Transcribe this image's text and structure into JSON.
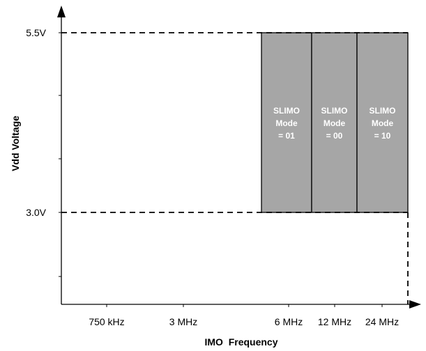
{
  "chart_data": {
    "type": "area",
    "xlabel": "IMO  Frequency",
    "ylabel": "Vdd Voltage",
    "x_ticks": [
      "750 kHz",
      "3 MHz",
      "6 MHz",
      "12 MHz",
      "24 MHz"
    ],
    "y_ticks": [
      "3.0V",
      "5.5V"
    ],
    "y_range": [
      3.0,
      5.5
    ],
    "regions": [
      {
        "label_lines": [
          "SLIMO",
          "Mode",
          "= 01"
        ],
        "x_to": "6 MHz"
      },
      {
        "label_lines": [
          "SLIMO",
          "Mode",
          "= 00"
        ],
        "x_to": "12 MHz"
      },
      {
        "label_lines": [
          "SLIMO",
          "Mode",
          "= 10"
        ],
        "x_to": "24 MHz"
      }
    ],
    "region_color": "#a6a6a6",
    "grid": false
  }
}
